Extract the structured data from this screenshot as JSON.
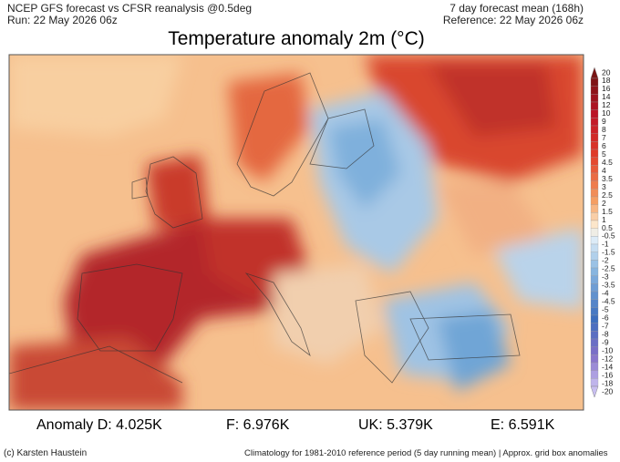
{
  "header": {
    "left": [
      "NCEP GFS forecast vs CFSR reanalysis @0.5deg",
      "Run: 22 May 2026 06z"
    ],
    "right": [
      "7 day forecast mean (168h)",
      "Reference: 22 May 2026 06z"
    ]
  },
  "title": "Temperature anomaly 2m (°C)",
  "colorbar": {
    "labels": [
      20,
      18,
      16,
      14,
      12,
      10,
      9,
      8,
      7,
      6,
      5,
      4.5,
      4,
      3.5,
      3,
      2.5,
      2,
      1.5,
      1,
      0.5,
      -0.5,
      -1,
      -1.5,
      -2,
      -2.5,
      -3,
      -3.5,
      -4,
      -4.5,
      -5,
      -6,
      -7,
      -8,
      -9,
      -10,
      -12,
      -14,
      -16,
      -18,
      -20
    ]
  },
  "stats": [
    "Anomaly D: 4.025K",
    "F: 6.976K",
    "UK: 5.379K",
    "E: 6.591K"
  ],
  "footer": {
    "left": "(c) Karsten Haustein",
    "right": "Climatology for 1981-2010 reference period (5 day running mean) | Approx. grid box anomalies"
  }
}
